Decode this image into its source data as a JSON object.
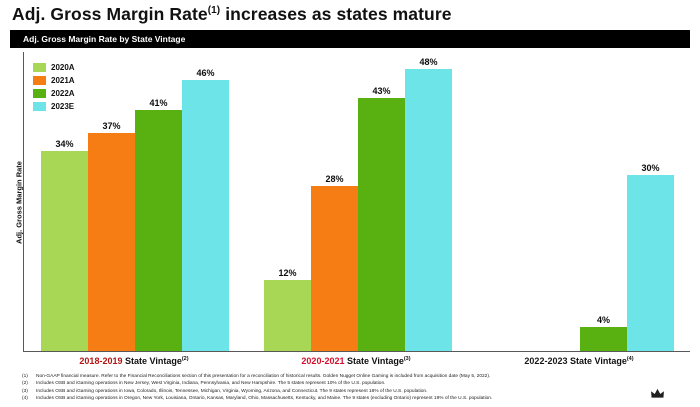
{
  "slide": {
    "title_prefix": "Adj. Gross Margin Rate",
    "title_superscript": "(1)",
    "title_suffix": " increases as states mature",
    "chart_header": "Adj. Gross Margin Rate by State Vintage"
  },
  "axis": {
    "ylabel": "Adj. Gross Margin Rate"
  },
  "legend_items": [
    {
      "label": "2020A",
      "color": "#a8d655"
    },
    {
      "label": "2021A",
      "color": "#f57d14"
    },
    {
      "label": "2022A",
      "color": "#58b011"
    },
    {
      "label": "2023E",
      "color": "#6de5e8"
    }
  ],
  "chart_data": {
    "type": "bar",
    "title": "Adj. Gross Margin Rate by State Vintage",
    "ylabel": "Adj. Gross Margin Rate",
    "value_suffix": "%",
    "ylim": [
      0,
      51
    ],
    "grid": false,
    "legend_position": "top-left",
    "categories": [
      {
        "years": "2018-2019",
        "rest": " State Vintage",
        "superscript": "(2)",
        "years_color": "#b31312"
      },
      {
        "years": "2020-2021",
        "rest": " State Vintage",
        "superscript": "(3)",
        "years_color": "#d50f2e"
      },
      {
        "years": "2022-2023",
        "rest": " State Vintage",
        "superscript": "(4)",
        "years_color": "#1a1a1a"
      }
    ],
    "series": [
      {
        "name": "2020A",
        "color": "#a8d655",
        "values": [
          34,
          12,
          null
        ]
      },
      {
        "name": "2021A",
        "color": "#f57d14",
        "values": [
          37,
          28,
          null
        ]
      },
      {
        "name": "2022A",
        "color": "#58b011",
        "values": [
          41,
          43,
          4
        ]
      },
      {
        "name": "2023E",
        "color": "#6de5e8",
        "values": [
          46,
          48,
          30
        ]
      }
    ]
  },
  "footnotes": [
    {
      "num": "(1)",
      "text": "Non-GAAP financial measure. Refer to the Financial Reconciliations section of this presentation for a reconciliation of historical results. Golden Nugget Online Gaming is included from acquisition date (May 5, 2022)."
    },
    {
      "num": "(2)",
      "text": "Includes OSB and iGaming operations in New Jersey, West Virginia, Indiana, Pennsylvania, and New Hampshire. The 5 states represent 10% of the U.S. population."
    },
    {
      "num": "(3)",
      "text": "Includes OSB and iGaming operations in Iowa, Colorado, Illinois, Tennessee, Michigan, Virginia, Wyoming, Arizona, and Connecticut. The 9 states represent 18% of the U.S. population."
    },
    {
      "num": "(4)",
      "text": "Includes OSB and iGaming operations in Oregon, New York, Louisiana, Ontario, Kansas, Maryland, Ohio, Massachusetts, Kentucky, and Maine. The 9 states (excluding Ontario) represent 19% of the U.S. population."
    }
  ],
  "logo": {
    "name": "crown-logo"
  }
}
